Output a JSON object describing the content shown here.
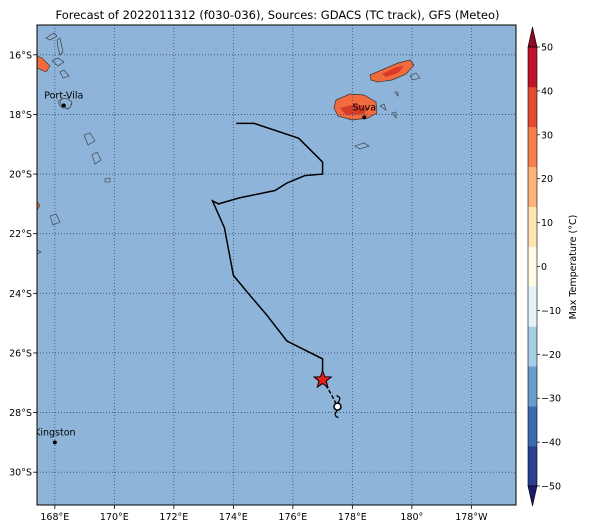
{
  "title": "Forecast of 2022011312 (f030-036), Sources: GDACS (TC track), GFS (Meteo)",
  "colors": {
    "ocean": "#8fb4d9",
    "grid": "#3a4a78",
    "track": "#000000",
    "storm_marker": "#e8201c",
    "land_warm": "#f26b3d",
    "land_hot": "#d93b2b"
  },
  "map": {
    "lon_range": [
      167.4,
      183.5
    ],
    "lat_range": [
      -31.1,
      -15.0
    ],
    "lon_ticks": [
      {
        "value": 168,
        "label": "168°E"
      },
      {
        "value": 170,
        "label": "170°E"
      },
      {
        "value": 172,
        "label": "172°E"
      },
      {
        "value": 174,
        "label": "174°E"
      },
      {
        "value": 176,
        "label": "176°E"
      },
      {
        "value": 178,
        "label": "178°E"
      },
      {
        "value": 180,
        "label": "180°"
      },
      {
        "value": 182,
        "label": "178°W"
      }
    ],
    "lat_ticks": [
      {
        "value": -16,
        "label": "16°S"
      },
      {
        "value": -18,
        "label": "18°S"
      },
      {
        "value": -20,
        "label": "20°S"
      },
      {
        "value": -22,
        "label": "22°S"
      },
      {
        "value": -24,
        "label": "24°S"
      },
      {
        "value": -26,
        "label": "26°S"
      },
      {
        "value": -28,
        "label": "28°S"
      },
      {
        "value": -30,
        "label": "30°S"
      }
    ],
    "cities": [
      {
        "name": "Port-Vila",
        "lon": 168.3,
        "lat": -17.7
      },
      {
        "name": "Suva",
        "lon": 178.4,
        "lat": -18.1
      },
      {
        "name": "Kingston",
        "lon": 168.0,
        "lat": -29.0
      }
    ],
    "track": [
      [
        174.1,
        -18.3
      ],
      [
        174.7,
        -18.3
      ],
      [
        176.2,
        -18.8
      ],
      [
        177.0,
        -19.6
      ],
      [
        177.0,
        -20.0
      ],
      [
        176.4,
        -20.05
      ],
      [
        175.8,
        -20.3
      ],
      [
        175.4,
        -20.55
      ],
      [
        174.2,
        -20.8
      ],
      [
        173.5,
        -21.0
      ],
      [
        173.3,
        -20.9
      ],
      [
        173.7,
        -21.8
      ],
      [
        174.0,
        -23.4
      ],
      [
        174.5,
        -24.0
      ],
      [
        175.1,
        -24.7
      ],
      [
        175.8,
        -25.6
      ],
      [
        177.0,
        -26.2
      ],
      [
        177.0,
        -26.9
      ]
    ],
    "storm_position": [
      177.0,
      -26.9
    ],
    "forecast_track": [
      [
        177.3,
        -27.4
      ],
      [
        177.5,
        -27.8
      ]
    ],
    "low_center": [
      177.5,
      -27.8
    ]
  },
  "colorbar": {
    "label": "Max Temperature (°C)",
    "min": -50,
    "max": 50,
    "ticks": [
      {
        "value": 50,
        "label": "50"
      },
      {
        "value": 40,
        "label": "40"
      },
      {
        "value": 30,
        "label": "30"
      },
      {
        "value": 20,
        "label": "20"
      },
      {
        "value": 10,
        "label": "10"
      },
      {
        "value": 0,
        "label": "0"
      },
      {
        "value": -10,
        "label": "−10"
      },
      {
        "value": -20,
        "label": "−20"
      },
      {
        "value": -30,
        "label": "−30"
      },
      {
        "value": -40,
        "label": "−40"
      },
      {
        "value": -50,
        "label": "−50"
      }
    ],
    "colors": [
      "#1b1b6e",
      "#2a3f8f",
      "#3e6ab0",
      "#6a9ccc",
      "#a8cde6",
      "#e4f3fa",
      "#fffbe6",
      "#fee4b3",
      "#fdb47a",
      "#f5804e",
      "#e34a2e",
      "#c0142a",
      "#8e0a26"
    ]
  }
}
